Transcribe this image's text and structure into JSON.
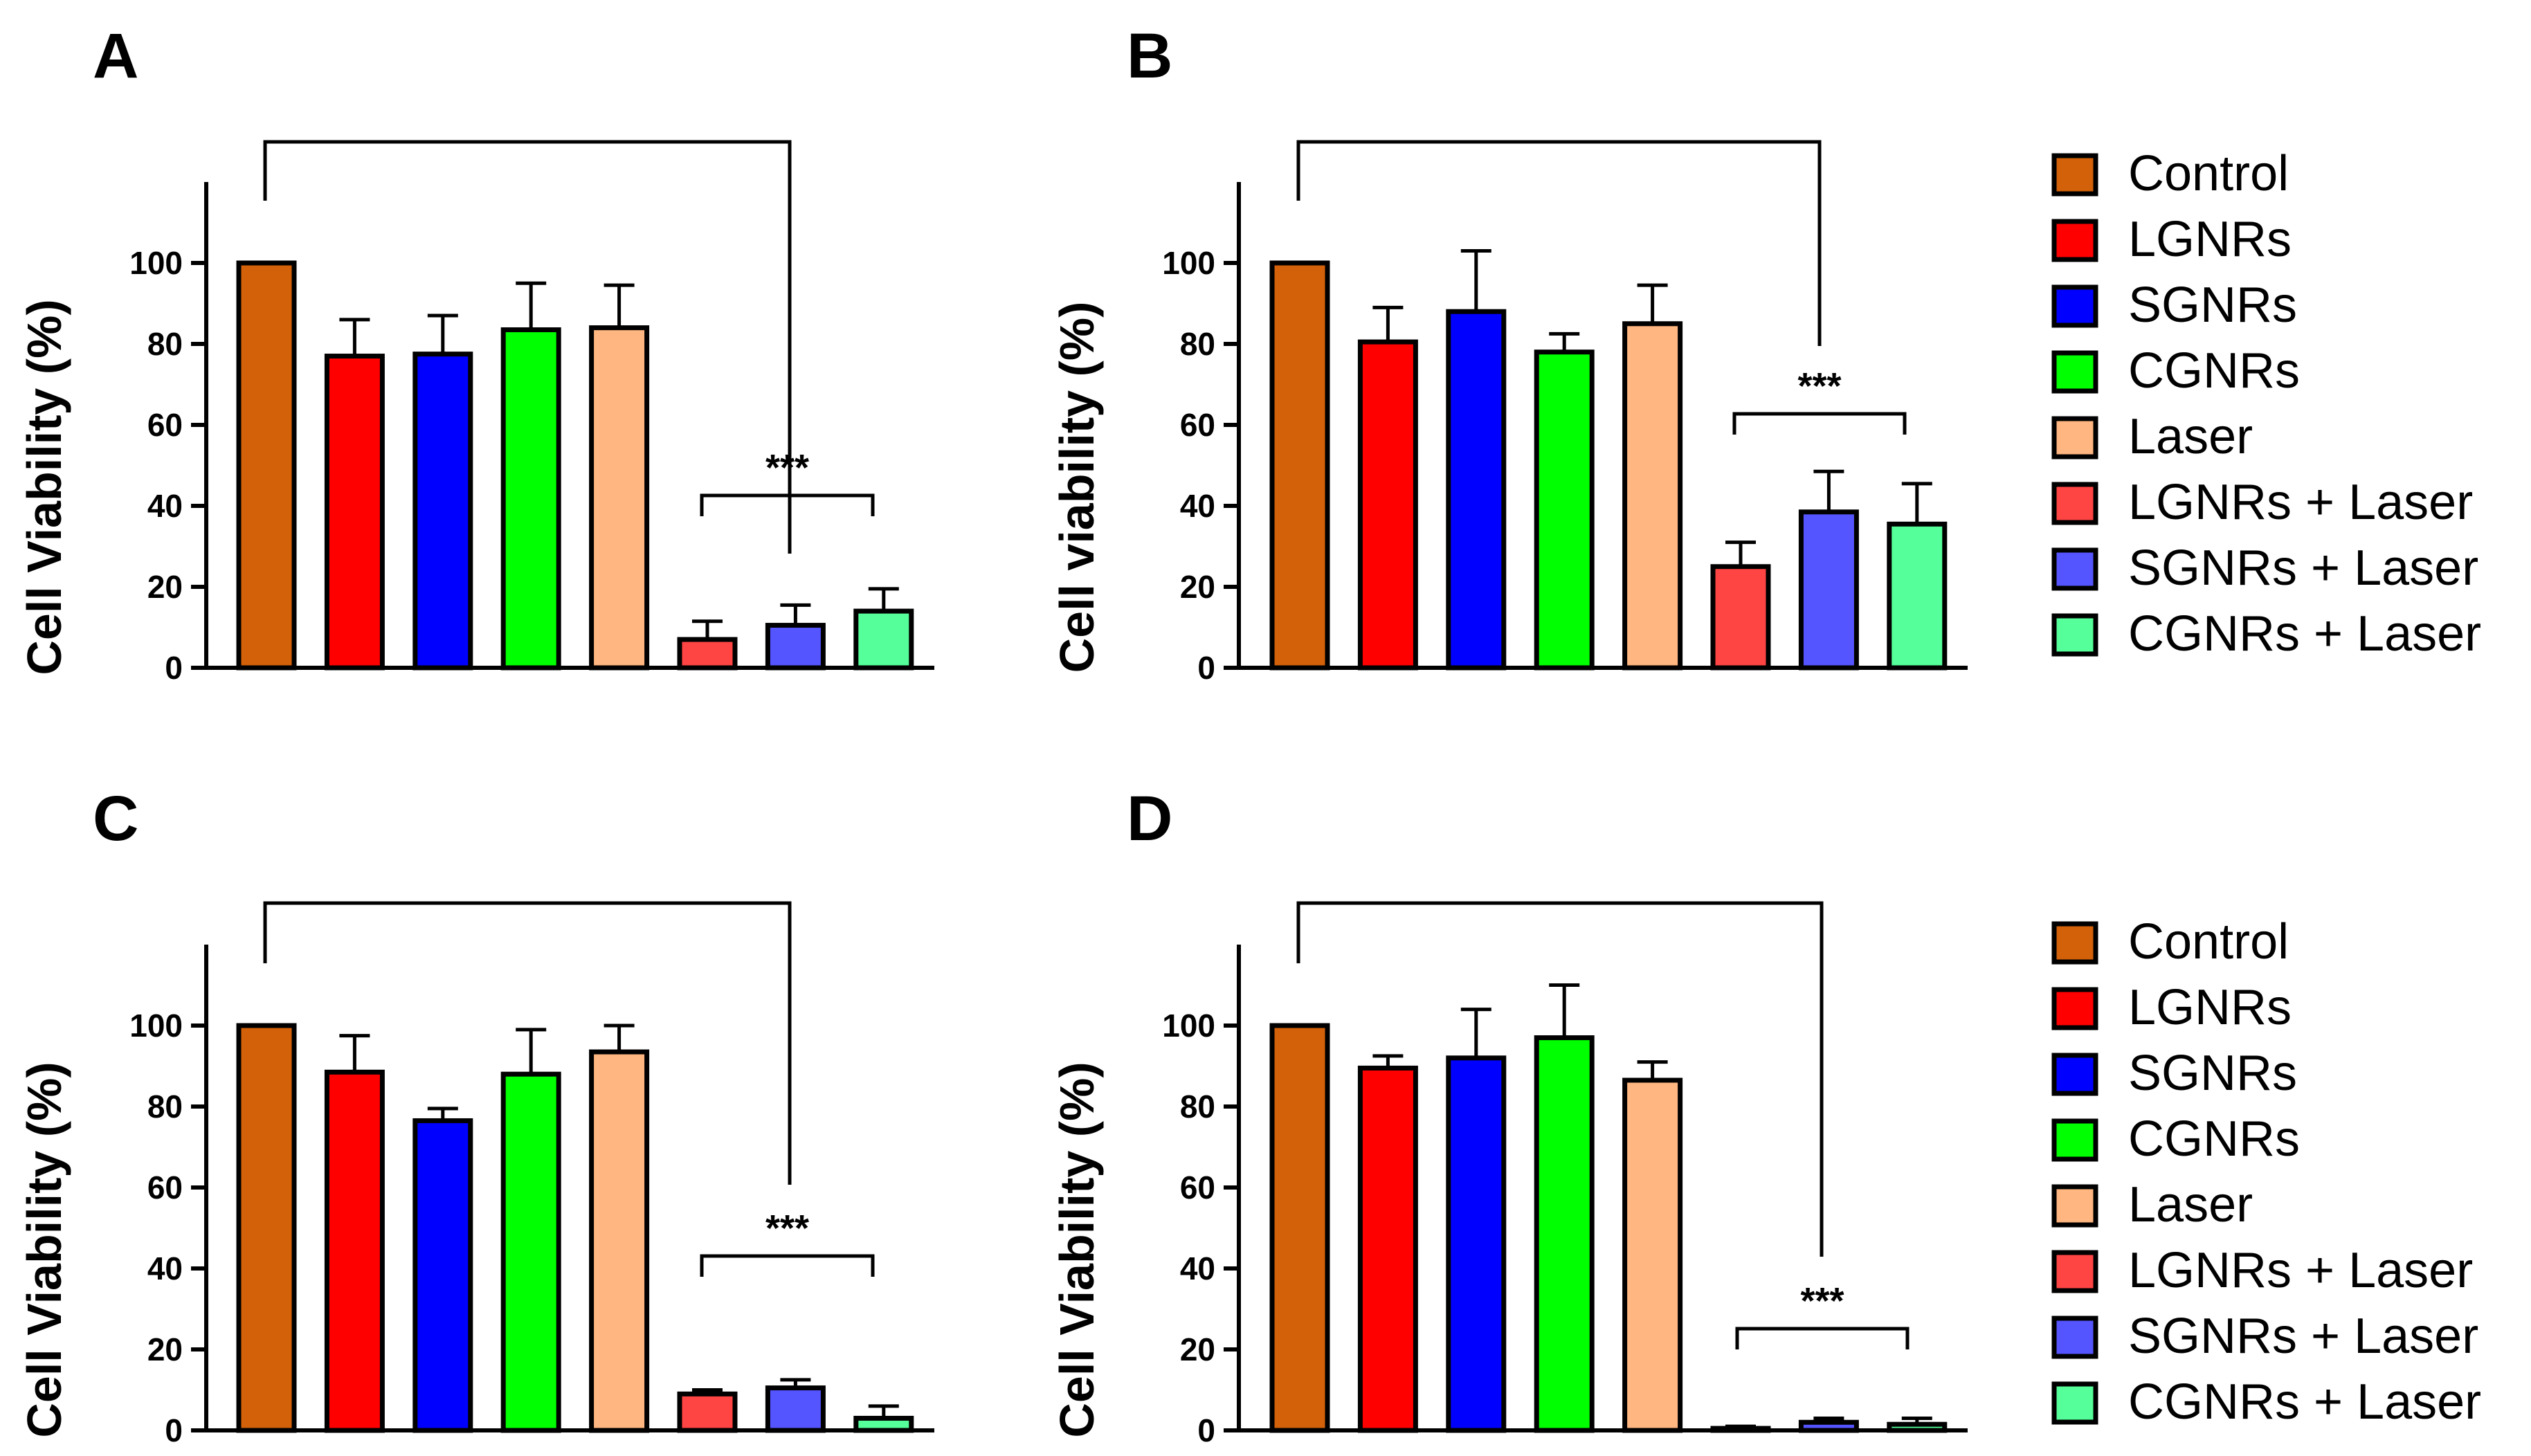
{
  "legend": [
    {
      "label": "Control",
      "color": "#D2610A"
    },
    {
      "label": "LGNRs",
      "color": "#FF0000"
    },
    {
      "label": "SGNRs",
      "color": "#0000FF"
    },
    {
      "label": "CGNRs",
      "color": "#00FF00"
    },
    {
      "label": "Laser",
      "color": "#FFB680"
    },
    {
      "label": "LGNRs + Laser",
      "color": "#FF4444"
    },
    {
      "label": "SGNRs + Laser",
      "color": "#5555FF"
    },
    {
      "label": "CGNRs + Laser",
      "color": "#55FF99"
    }
  ],
  "chart_data": [
    {
      "panel": "A",
      "type": "bar",
      "categories": [
        "Control",
        "LGNRs",
        "SGNRs",
        "CGNRs",
        "Laser",
        "LGNRs + Laser",
        "SGNRs + Laser",
        "CGNRs + Laser"
      ],
      "values": [
        100,
        77,
        77.5,
        83.5,
        84,
        7,
        10.5,
        14
      ],
      "errors": [
        0,
        9,
        9.5,
        11.5,
        10.5,
        4.5,
        5,
        5.5
      ],
      "ylabel": "Cell Viability (%)",
      "yticks": [
        0,
        20,
        40,
        60,
        80,
        100
      ],
      "ylim": [
        0,
        120
      ],
      "significance": "***"
    },
    {
      "panel": "B",
      "type": "bar",
      "categories": [
        "Control",
        "LGNRs",
        "SGNRs",
        "CGNRs",
        "Laser",
        "LGNRs + Laser",
        "SGNRs + Laser",
        "CGNRs + Laser"
      ],
      "values": [
        100,
        80.5,
        88,
        78,
        85,
        25,
        38.5,
        35.5
      ],
      "errors": [
        0,
        8.5,
        15,
        4.5,
        9.5,
        6,
        10,
        10
      ],
      "ylabel": "Cell viability (%)",
      "yticks": [
        0,
        20,
        40,
        60,
        80,
        100
      ],
      "ylim": [
        0,
        120
      ],
      "significance": "***"
    },
    {
      "panel": "C",
      "type": "bar",
      "categories": [
        "Control",
        "LGNRs",
        "SGNRs",
        "CGNRs",
        "Laser",
        "LGNRs + Laser",
        "SGNRs + Laser",
        "CGNRs + Laser"
      ],
      "values": [
        100,
        88.5,
        76.5,
        88,
        93.5,
        9,
        10.5,
        3
      ],
      "errors": [
        0,
        9,
        3,
        11,
        6.5,
        1,
        2,
        3
      ],
      "ylabel": "Cell Viability (%)",
      "yticks": [
        0,
        20,
        40,
        60,
        80,
        100
      ],
      "ylim": [
        0,
        120
      ],
      "significance": "***"
    },
    {
      "panel": "D",
      "type": "bar",
      "categories": [
        "Control",
        "LGNRs",
        "SGNRs",
        "CGNRs",
        "Laser",
        "LGNRs + Laser",
        "SGNRs + Laser",
        "CGNRs + Laser"
      ],
      "values": [
        100,
        89.5,
        92,
        97,
        86.5,
        0.5,
        2,
        1.5
      ],
      "errors": [
        0,
        3,
        12,
        13,
        4.5,
        0.5,
        1,
        1.5
      ],
      "ylabel": "Cell Viability (%)",
      "yticks": [
        0,
        20,
        40,
        60,
        80,
        100
      ],
      "ylim": [
        0,
        120
      ],
      "significance": "***"
    }
  ]
}
